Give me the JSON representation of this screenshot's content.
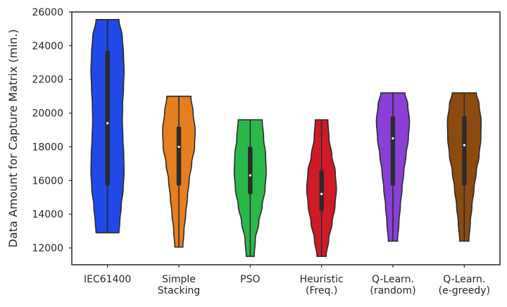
{
  "chart_data": {
    "type": "violin",
    "title": "",
    "xlabel": "",
    "ylabel": "Data Amount for Capture Matrix (min.)",
    "ylim": [
      11000,
      26000
    ],
    "yticks": [
      12000,
      14000,
      16000,
      18000,
      20000,
      22000,
      24000,
      26000
    ],
    "grid": false,
    "categories": [
      [
        "IEC61400"
      ],
      [
        "Simple",
        "Stacking"
      ],
      [
        "PSO"
      ],
      [
        "Heuristic",
        "(Freq.)"
      ],
      [
        "Q-Learn.",
        "(random)"
      ],
      [
        "Q-Learn.",
        "(e-greedy)"
      ]
    ],
    "series": [
      {
        "color": "#1f4ae8",
        "min": 12900,
        "max": 25550,
        "q1": 15700,
        "median": 19400,
        "q3": 23700,
        "profile": [
          [
            12900,
            0.4
          ],
          [
            13500,
            0.43
          ],
          [
            14500,
            0.48
          ],
          [
            15500,
            0.55
          ],
          [
            16500,
            0.58
          ],
          [
            17500,
            0.57
          ],
          [
            18500,
            0.54
          ],
          [
            19500,
            0.52
          ],
          [
            20500,
            0.53
          ],
          [
            21500,
            0.56
          ],
          [
            22500,
            0.58
          ],
          [
            23500,
            0.56
          ],
          [
            24500,
            0.52
          ],
          [
            25550,
            0.4
          ]
        ]
      },
      {
        "color": "#e67e1f",
        "min": 12050,
        "max": 21000,
        "q1": 15700,
        "median": 18000,
        "q3": 19200,
        "profile": [
          [
            12050,
            0.14
          ],
          [
            13000,
            0.18
          ],
          [
            14000,
            0.24
          ],
          [
            15000,
            0.3
          ],
          [
            16000,
            0.36
          ],
          [
            17000,
            0.45
          ],
          [
            18000,
            0.55
          ],
          [
            19000,
            0.57
          ],
          [
            20000,
            0.5
          ],
          [
            21000,
            0.42
          ]
        ]
      },
      {
        "color": "#2bb84a",
        "min": 11500,
        "max": 19600,
        "q1": 15200,
        "median": 16300,
        "q3": 18000,
        "profile": [
          [
            11500,
            0.14
          ],
          [
            12500,
            0.18
          ],
          [
            13500,
            0.3
          ],
          [
            14500,
            0.42
          ],
          [
            15500,
            0.52
          ],
          [
            16500,
            0.56
          ],
          [
            17500,
            0.54
          ],
          [
            18500,
            0.47
          ],
          [
            19600,
            0.42
          ]
        ]
      },
      {
        "color": "#d01a26",
        "min": 11500,
        "max": 19600,
        "q1": 14200,
        "median": 15200,
        "q3": 16600,
        "profile": [
          [
            11500,
            0.16
          ],
          [
            12500,
            0.25
          ],
          [
            13500,
            0.37
          ],
          [
            14500,
            0.47
          ],
          [
            15500,
            0.52
          ],
          [
            16500,
            0.48
          ],
          [
            17500,
            0.36
          ],
          [
            18500,
            0.26
          ],
          [
            19600,
            0.22
          ]
        ]
      },
      {
        "color": "#8a3fd6",
        "min": 12400,
        "max": 21200,
        "q1": 15700,
        "median": 18500,
        "q3": 19800,
        "profile": [
          [
            12400,
            0.16
          ],
          [
            13500,
            0.21
          ],
          [
            14500,
            0.26
          ],
          [
            15500,
            0.32
          ],
          [
            16500,
            0.38
          ],
          [
            17500,
            0.46
          ],
          [
            18500,
            0.54
          ],
          [
            19500,
            0.58
          ],
          [
            20500,
            0.52
          ],
          [
            21200,
            0.42
          ]
        ]
      },
      {
        "color": "#8b4a10",
        "min": 12400,
        "max": 21200,
        "q1": 15700,
        "median": 18100,
        "q3": 19800,
        "profile": [
          [
            12400,
            0.16
          ],
          [
            13500,
            0.21
          ],
          [
            14500,
            0.27
          ],
          [
            15500,
            0.34
          ],
          [
            16500,
            0.42
          ],
          [
            17500,
            0.52
          ],
          [
            18500,
            0.58
          ],
          [
            19500,
            0.59
          ],
          [
            20500,
            0.52
          ],
          [
            21200,
            0.42
          ]
        ]
      }
    ]
  }
}
